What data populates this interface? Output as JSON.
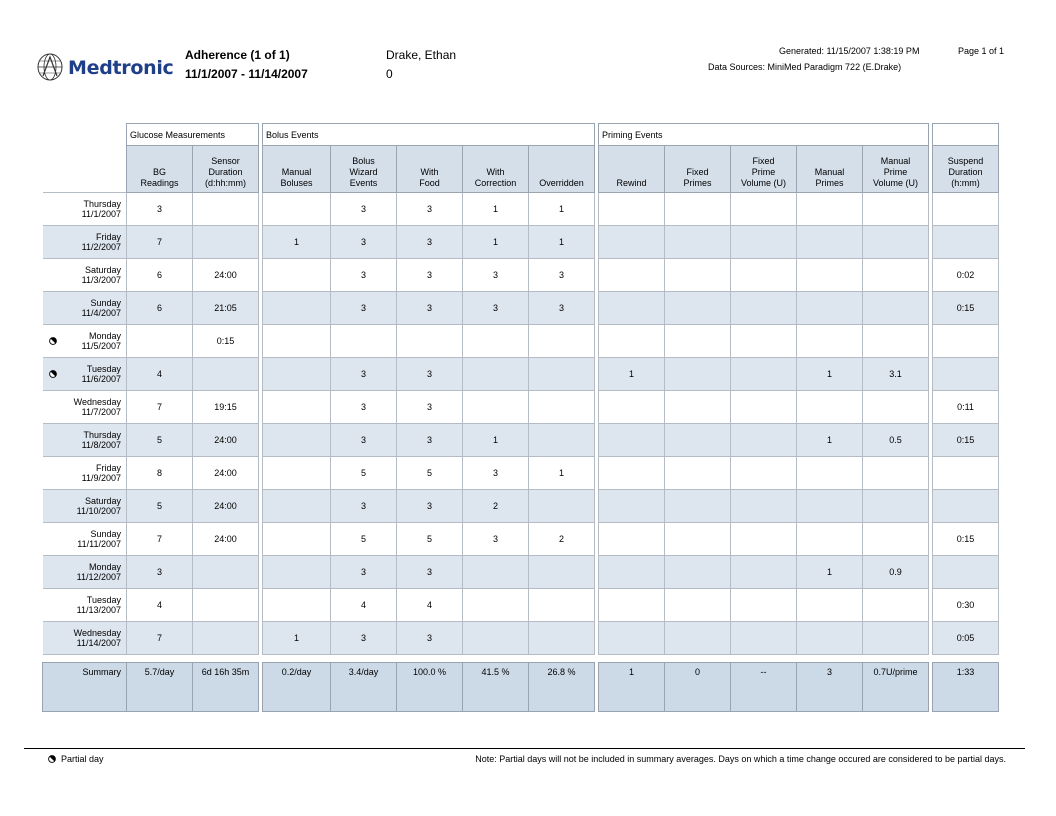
{
  "header": {
    "brand": "Medtronic",
    "title": "Adherence (1 of 1)",
    "date_range": "11/1/2007 - 11/14/2007",
    "patient_name": "Drake, Ethan",
    "patient_id": "0",
    "generated": "Generated: 11/15/2007 1:38:19 PM",
    "data_sources": "Data Sources: MiniMed Paradigm 722 (E.Drake)",
    "page": "Page 1 of 1"
  },
  "groups": {
    "glucose": "Glucose Measurements",
    "bolus": "Bolus Events",
    "priming": "Priming Events"
  },
  "columns": [
    [
      "BG",
      "Readings"
    ],
    [
      "Sensor",
      "Duration",
      "(d:hh:mm)"
    ],
    [
      "Manual",
      "Boluses"
    ],
    [
      "Bolus",
      "Wizard",
      "Events"
    ],
    [
      "With",
      "Food"
    ],
    [
      "With",
      "Correction"
    ],
    [
      "Overridden"
    ],
    [
      "Rewind"
    ],
    [
      "Fixed",
      "Primes"
    ],
    [
      "Fixed",
      "Prime",
      "Volume (U)"
    ],
    [
      "Manual",
      "Primes"
    ],
    [
      "Manual",
      "Prime",
      "Volume (U)"
    ],
    [
      "Suspend",
      "Duration",
      "(h:mm)"
    ]
  ],
  "rows": [
    {
      "day": "Thursday",
      "date": "11/1/2007",
      "partial": false,
      "v": [
        "3",
        "",
        "",
        "3",
        "3",
        "1",
        "1",
        "",
        "",
        "",
        "",
        "",
        ""
      ]
    },
    {
      "day": "Friday",
      "date": "11/2/2007",
      "partial": false,
      "v": [
        "7",
        "",
        "1",
        "3",
        "3",
        "1",
        "1",
        "",
        "",
        "",
        "",
        "",
        ""
      ]
    },
    {
      "day": "Saturday",
      "date": "11/3/2007",
      "partial": false,
      "v": [
        "6",
        "24:00",
        "",
        "3",
        "3",
        "3",
        "3",
        "",
        "",
        "",
        "",
        "",
        "0:02"
      ]
    },
    {
      "day": "Sunday",
      "date": "11/4/2007",
      "partial": false,
      "v": [
        "6",
        "21:05",
        "",
        "3",
        "3",
        "3",
        "3",
        "",
        "",
        "",
        "",
        "",
        "0:15"
      ]
    },
    {
      "day": "Monday",
      "date": "11/5/2007",
      "partial": true,
      "v": [
        "",
        "0:15",
        "",
        "",
        "",
        "",
        "",
        "",
        "",
        "",
        "",
        "",
        ""
      ]
    },
    {
      "day": "Tuesday",
      "date": "11/6/2007",
      "partial": true,
      "v": [
        "4",
        "",
        "",
        "3",
        "3",
        "",
        "",
        "1",
        "",
        "",
        "1",
        "3.1",
        ""
      ]
    },
    {
      "day": "Wednesday",
      "date": "11/7/2007",
      "partial": false,
      "v": [
        "7",
        "19:15",
        "",
        "3",
        "3",
        "",
        "",
        "",
        "",
        "",
        "",
        "",
        "0:11"
      ]
    },
    {
      "day": "Thursday",
      "date": "11/8/2007",
      "partial": false,
      "v": [
        "5",
        "24:00",
        "",
        "3",
        "3",
        "1",
        "",
        "",
        "",
        "",
        "1",
        "0.5",
        "0:15"
      ]
    },
    {
      "day": "Friday",
      "date": "11/9/2007",
      "partial": false,
      "v": [
        "8",
        "24:00",
        "",
        "5",
        "5",
        "3",
        "1",
        "",
        "",
        "",
        "",
        "",
        ""
      ]
    },
    {
      "day": "Saturday",
      "date": "11/10/2007",
      "partial": false,
      "v": [
        "5",
        "24:00",
        "",
        "3",
        "3",
        "2",
        "",
        "",
        "",
        "",
        "",
        "",
        ""
      ]
    },
    {
      "day": "Sunday",
      "date": "11/11/2007",
      "partial": false,
      "v": [
        "7",
        "24:00",
        "",
        "5",
        "5",
        "3",
        "2",
        "",
        "",
        "",
        "",
        "",
        "0:15"
      ]
    },
    {
      "day": "Monday",
      "date": "11/12/2007",
      "partial": false,
      "v": [
        "3",
        "",
        "",
        "3",
        "3",
        "",
        "",
        "",
        "",
        "",
        "1",
        "0.9",
        ""
      ]
    },
    {
      "day": "Tuesday",
      "date": "11/13/2007",
      "partial": false,
      "v": [
        "4",
        "",
        "",
        "4",
        "4",
        "",
        "",
        "",
        "",
        "",
        "",
        "",
        "0:30"
      ]
    },
    {
      "day": "Wednesday",
      "date": "11/14/2007",
      "partial": false,
      "v": [
        "7",
        "",
        "1",
        "3",
        "3",
        "",
        "",
        "",
        "",
        "",
        "",
        "",
        "0:05"
      ]
    }
  ],
  "summary": {
    "label": "Summary",
    "v": [
      "5.7/day",
      "6d 16h 35m",
      "0.2/day",
      "3.4/day",
      "100.0 %",
      "41.5 %",
      "26.8 %",
      "1",
      "0",
      "--",
      "3",
      "0.7U/prime",
      "1:33"
    ]
  },
  "footer": {
    "legend_icon": "partial-day-icon",
    "legend_label": "Partial day",
    "note": "Note: Partial days will not be included in summary averages. Days on which a time change occured are considered to be partial days."
  }
}
